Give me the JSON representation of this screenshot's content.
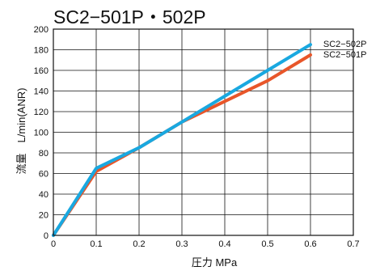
{
  "chart_data": {
    "type": "line",
    "title": "SC2−501P・502P",
    "xlabel": "圧力 MPa",
    "ylabel": "流量　L/min(ANR)",
    "xlim": [
      0,
      0.7
    ],
    "ylim": [
      0,
      200
    ],
    "x_ticks": [
      0,
      0.1,
      0.2,
      0.3,
      0.4,
      0.5,
      0.6,
      0.7
    ],
    "x_tick_labels": [
      "0",
      "0.1",
      "0.2",
      "0.3",
      "0.4",
      "0.5",
      "0.6",
      "0.7"
    ],
    "y_ticks": [
      0,
      20,
      40,
      60,
      80,
      100,
      120,
      140,
      160,
      180,
      200
    ],
    "y_tick_labels": [
      "0",
      "20",
      "40",
      "60",
      "80",
      "100",
      "120",
      "140",
      "160",
      "180",
      "200"
    ],
    "grid": true,
    "series": [
      {
        "name": "SC2−501P",
        "color": "#e8562a",
        "x": [
          0,
          0.1,
          0.2,
          0.3,
          0.4,
          0.5,
          0.6
        ],
        "y": [
          0,
          62,
          85,
          110,
          130,
          150,
          175
        ]
      },
      {
        "name": "SC2−502P",
        "color": "#19a8e0",
        "x": [
          0,
          0.1,
          0.2,
          0.3,
          0.4,
          0.5,
          0.6
        ],
        "y": [
          0,
          65,
          85,
          110,
          135,
          160,
          185
        ]
      }
    ],
    "legend": [
      {
        "text": "SC2−502P",
        "series": "SC2−502P"
      },
      {
        "text": "SC2−501P",
        "series": "SC2−501P"
      }
    ]
  }
}
